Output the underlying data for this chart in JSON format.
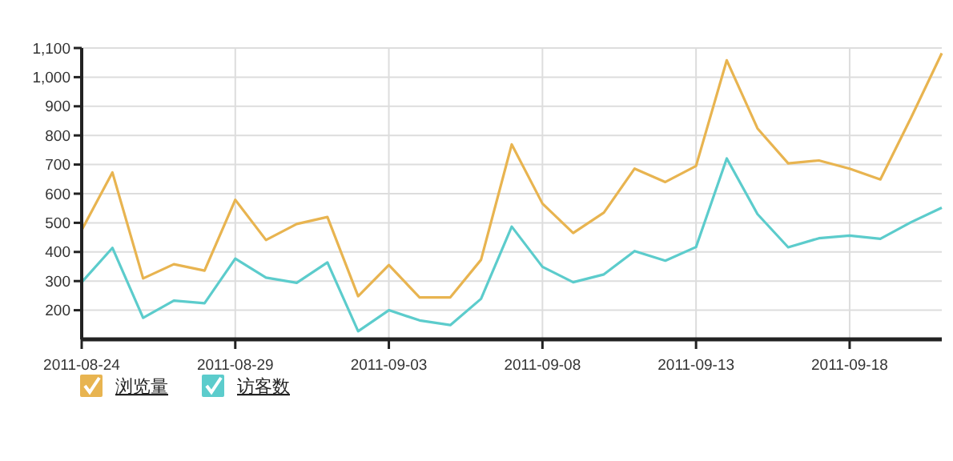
{
  "chart_data": {
    "type": "line",
    "x": [
      "2011-08-24",
      "2011-08-25",
      "2011-08-26",
      "2011-08-27",
      "2011-08-28",
      "2011-08-29",
      "2011-08-30",
      "2011-08-31",
      "2011-09-01",
      "2011-09-02",
      "2011-09-03",
      "2011-09-04",
      "2011-09-05",
      "2011-09-06",
      "2011-09-07",
      "2011-09-08",
      "2011-09-09",
      "2011-09-10",
      "2011-09-11",
      "2011-09-12",
      "2011-09-13",
      "2011-09-14",
      "2011-09-15",
      "2011-09-16",
      "2011-09-17",
      "2011-09-18",
      "2011-09-19",
      "2011-09-20",
      "2011-09-21"
    ],
    "series": [
      {
        "name": "浏览量",
        "color": "#e8b450",
        "values": [
          475,
          673,
          309,
          358,
          336,
          579,
          441,
          496,
          520,
          248,
          355,
          244,
          244,
          373,
          769,
          566,
          465,
          535,
          686,
          640,
          695,
          1058,
          824,
          704,
          714,
          686,
          649,
          861,
          1082
        ]
      },
      {
        "name": "访客数",
        "color": "#5ccccc",
        "values": [
          296,
          414,
          174,
          233,
          224,
          377,
          312,
          294,
          364,
          128,
          200,
          165,
          149,
          239,
          487,
          349,
          296,
          323,
          403,
          370,
          417,
          721,
          530,
          416,
          447,
          456,
          445,
          502,
          552
        ]
      }
    ],
    "xlim": [
      "2011-08-24",
      "2011-09-21"
    ],
    "xticks": [
      "2011-08-24",
      "2011-08-29",
      "2011-09-03",
      "2011-09-08",
      "2011-09-13",
      "2011-09-18"
    ],
    "ylim": [
      100,
      1100
    ],
    "yticks": [
      200,
      300,
      400,
      500,
      600,
      700,
      800,
      900,
      {
        "value": 1000,
        "label": "1,000"
      },
      {
        "value": 1100,
        "label": "1,100"
      }
    ],
    "grid": true,
    "legend": "bottom left",
    "marker": "none",
    "line_style": "solid"
  }
}
